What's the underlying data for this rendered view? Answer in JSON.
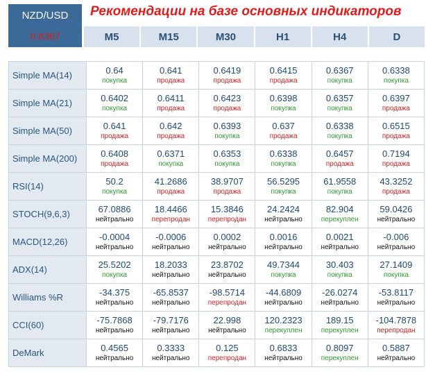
{
  "header": {
    "pair": "NZD/USD",
    "price": "0.6367",
    "title": "Рекомендации на базе основных индикаторов"
  },
  "timeframes": [
    "M5",
    "M15",
    "M30",
    "H1",
    "H4",
    "D"
  ],
  "colors": {
    "buy": "#2a9a2a",
    "sell": "#d01f1f",
    "neutral": "#111111",
    "header_box": "#3b6a99",
    "title": "#e11b1b"
  },
  "rows": [
    {
      "name": "Simple MA(14)",
      "cells": [
        {
          "value": "0.64",
          "signal": "покупка",
          "tone": "buy"
        },
        {
          "value": "0.641",
          "signal": "продажа",
          "tone": "sell"
        },
        {
          "value": "0.6419",
          "signal": "продажа",
          "tone": "sell"
        },
        {
          "value": "0.6415",
          "signal": "продажа",
          "tone": "sell"
        },
        {
          "value": "0.6367",
          "signal": "покупка",
          "tone": "buy"
        },
        {
          "value": "0.6338",
          "signal": "покупка",
          "tone": "buy"
        }
      ]
    },
    {
      "name": "Simple MA(21)",
      "cells": [
        {
          "value": "0.6402",
          "signal": "покупка",
          "tone": "buy"
        },
        {
          "value": "0.6411",
          "signal": "продажа",
          "tone": "sell"
        },
        {
          "value": "0.6423",
          "signal": "продажа",
          "tone": "sell"
        },
        {
          "value": "0.6398",
          "signal": "покупка",
          "tone": "buy"
        },
        {
          "value": "0.6357",
          "signal": "покупка",
          "tone": "buy"
        },
        {
          "value": "0.6397",
          "signal": "продажа",
          "tone": "sell"
        }
      ]
    },
    {
      "name": "Simple MA(50)",
      "cells": [
        {
          "value": "0.641",
          "signal": "продажа",
          "tone": "sell"
        },
        {
          "value": "0.642",
          "signal": "продажа",
          "tone": "sell"
        },
        {
          "value": "0.6393",
          "signal": "покупка",
          "tone": "buy"
        },
        {
          "value": "0.637",
          "signal": "продажа",
          "tone": "sell"
        },
        {
          "value": "0.6338",
          "signal": "покупка",
          "tone": "buy"
        },
        {
          "value": "0.6515",
          "signal": "продажа",
          "tone": "sell"
        }
      ]
    },
    {
      "name": "Simple MA(200)",
      "cells": [
        {
          "value": "0.6408",
          "signal": "продажа",
          "tone": "sell"
        },
        {
          "value": "0.6371",
          "signal": "покупка",
          "tone": "buy"
        },
        {
          "value": "0.6353",
          "signal": "покупка",
          "tone": "buy"
        },
        {
          "value": "0.6338",
          "signal": "покупка",
          "tone": "buy"
        },
        {
          "value": "0.6457",
          "signal": "продажа",
          "tone": "sell"
        },
        {
          "value": "0.7194",
          "signal": "продажа",
          "tone": "sell"
        }
      ]
    },
    {
      "name": "RSI(14)",
      "cells": [
        {
          "value": "50.2",
          "signal": "покупка",
          "tone": "buy"
        },
        {
          "value": "41.2686",
          "signal": "продажа",
          "tone": "sell"
        },
        {
          "value": "38.9707",
          "signal": "продажа",
          "tone": "sell"
        },
        {
          "value": "56.5295",
          "signal": "покупка",
          "tone": "buy"
        },
        {
          "value": "61.9558",
          "signal": "покупка",
          "tone": "buy"
        },
        {
          "value": "43.3252",
          "signal": "продажа",
          "tone": "sell"
        }
      ]
    },
    {
      "name": "STOCH(9,6,3)",
      "cells": [
        {
          "value": "67.0886",
          "signal": "нейтрально",
          "tone": "neutral"
        },
        {
          "value": "18.4466",
          "signal": "перепродан",
          "tone": "sell"
        },
        {
          "value": "15.3846",
          "signal": "перепродан",
          "tone": "sell"
        },
        {
          "value": "24.2424",
          "signal": "нейтрально",
          "tone": "neutral"
        },
        {
          "value": "82.904",
          "signal": "перекуплен",
          "tone": "buy"
        },
        {
          "value": "59.0426",
          "signal": "нейтрально",
          "tone": "neutral"
        }
      ]
    },
    {
      "name": "MACD(12,26)",
      "cells": [
        {
          "value": "-0.0004",
          "signal": "нейтрально",
          "tone": "neutral"
        },
        {
          "value": "-0.0006",
          "signal": "нейтрально",
          "tone": "neutral"
        },
        {
          "value": "0.0002",
          "signal": "нейтрально",
          "tone": "neutral"
        },
        {
          "value": "0.0016",
          "signal": "нейтрально",
          "tone": "neutral"
        },
        {
          "value": "0.0021",
          "signal": "нейтрально",
          "tone": "neutral"
        },
        {
          "value": "-0.006",
          "signal": "нейтрально",
          "tone": "neutral"
        }
      ]
    },
    {
      "name": "ADX(14)",
      "cells": [
        {
          "value": "25.5202",
          "signal": "покупка",
          "tone": "buy"
        },
        {
          "value": "18.2033",
          "signal": "нейтрально",
          "tone": "neutral"
        },
        {
          "value": "23.8702",
          "signal": "нейтрально",
          "tone": "neutral"
        },
        {
          "value": "49.7344",
          "signal": "покупка",
          "tone": "buy"
        },
        {
          "value": "30.403",
          "signal": "покупка",
          "tone": "buy"
        },
        {
          "value": "27.1409",
          "signal": "покупка",
          "tone": "buy"
        }
      ]
    },
    {
      "name": "Williams %R",
      "cells": [
        {
          "value": "-34.375",
          "signal": "нейтрально",
          "tone": "neutral"
        },
        {
          "value": "-65.8537",
          "signal": "нейтрально",
          "tone": "neutral"
        },
        {
          "value": "-98.5714",
          "signal": "перепродан",
          "tone": "sell"
        },
        {
          "value": "-44.6809",
          "signal": "нейтрально",
          "tone": "neutral"
        },
        {
          "value": "-26.0274",
          "signal": "нейтрально",
          "tone": "neutral"
        },
        {
          "value": "-53.8117",
          "signal": "нейтрально",
          "tone": "neutral"
        }
      ]
    },
    {
      "name": "CCI(60)",
      "cells": [
        {
          "value": "-75.7868",
          "signal": "нейтрально",
          "tone": "neutral"
        },
        {
          "value": "-79.7176",
          "signal": "нейтрально",
          "tone": "neutral"
        },
        {
          "value": "22.998",
          "signal": "нейтрально",
          "tone": "neutral"
        },
        {
          "value": "120.2323",
          "signal": "перекуплен",
          "tone": "buy"
        },
        {
          "value": "189.15",
          "signal": "перекуплен",
          "tone": "buy"
        },
        {
          "value": "-104.7878",
          "signal": "перепродан",
          "tone": "sell"
        }
      ]
    },
    {
      "name": "DeMark",
      "cells": [
        {
          "value": "0.4565",
          "signal": "нейтрально",
          "tone": "neutral"
        },
        {
          "value": "0.3333",
          "signal": "нейтрально",
          "tone": "neutral"
        },
        {
          "value": "0.125",
          "signal": "перепродан",
          "tone": "sell"
        },
        {
          "value": "0.6833",
          "signal": "нейтрально",
          "tone": "neutral"
        },
        {
          "value": "0.8097",
          "signal": "перекуплен",
          "tone": "buy"
        },
        {
          "value": "0.5887",
          "signal": "нейтрально",
          "tone": "neutral"
        }
      ]
    }
  ]
}
